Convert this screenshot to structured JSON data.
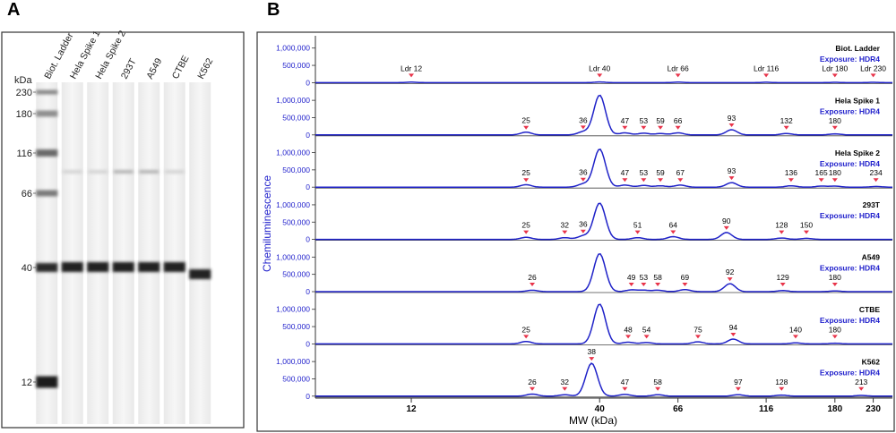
{
  "panels": {
    "a": "A",
    "b": "B"
  },
  "gel": {
    "kda_label": "kDa",
    "lanes": [
      "Biot. Ladder",
      "Hela Spike 1",
      "Hela Spike 2",
      "293T",
      "A549",
      "CTBE",
      "K562"
    ],
    "markers": [
      "230",
      "180",
      "116",
      "66",
      "40",
      "12"
    ]
  },
  "chart_data": {
    "type": "line",
    "xlabel": "MW (kDa)",
    "ylabel": "Chemiluminescence",
    "x_ticks": [
      "12",
      "40",
      "66",
      "116",
      "180",
      "230"
    ],
    "y_ticks": [
      "1,000,000",
      "500,000",
      "0"
    ],
    "ylim": [
      0,
      1200000
    ],
    "exposure_label": "Exposure: HDR4",
    "series": [
      {
        "name": "Biot. Ladder",
        "peak_labels": [
          "Ldr 12",
          "Ldr 40",
          "Ldr 66",
          "Ldr 116",
          "Ldr 180",
          "Ldr 230"
        ],
        "peak_mw": [
          12,
          40,
          66,
          116,
          180,
          230
        ],
        "trace": [
          [
            12,
            15000
          ],
          [
            40,
            20000
          ],
          [
            66,
            15000
          ],
          [
            116,
            12000
          ],
          [
            180,
            10000
          ],
          [
            230,
            10000
          ]
        ]
      },
      {
        "name": "Hela Spike 1",
        "peak_labels": [
          "25",
          "36",
          "47",
          "53",
          "59",
          "66",
          "93",
          "132",
          "180"
        ],
        "peak_mw": [
          25,
          36,
          47,
          53,
          59,
          66,
          93,
          132,
          180
        ],
        "trace": [
          [
            25,
            80000
          ],
          [
            36,
            90000
          ],
          [
            40,
            1150000
          ],
          [
            47,
            60000
          ],
          [
            53,
            50000
          ],
          [
            59,
            40000
          ],
          [
            66,
            60000
          ],
          [
            93,
            150000
          ],
          [
            132,
            40000
          ],
          [
            180,
            30000
          ]
        ]
      },
      {
        "name": "Hela Spike 2",
        "peak_labels": [
          "25",
          "36",
          "47",
          "53",
          "59",
          "67",
          "93",
          "136",
          "165",
          "180",
          "234"
        ],
        "peak_mw": [
          25,
          36,
          47,
          53,
          59,
          67,
          93,
          136,
          165,
          180,
          234
        ],
        "trace": [
          [
            25,
            70000
          ],
          [
            36,
            90000
          ],
          [
            40,
            1100000
          ],
          [
            47,
            60000
          ],
          [
            53,
            50000
          ],
          [
            59,
            40000
          ],
          [
            67,
            60000
          ],
          [
            93,
            130000
          ],
          [
            136,
            40000
          ],
          [
            165,
            30000
          ],
          [
            180,
            30000
          ],
          [
            234,
            20000
          ]
        ]
      },
      {
        "name": "293T",
        "peak_labels": [
          "25",
          "32",
          "36",
          "51",
          "64",
          "90",
          "128",
          "150"
        ],
        "peak_mw": [
          25,
          32,
          36,
          51,
          64,
          90,
          128,
          150
        ],
        "trace": [
          [
            25,
            60000
          ],
          [
            32,
            50000
          ],
          [
            36,
            100000
          ],
          [
            40,
            1050000
          ],
          [
            51,
            50000
          ],
          [
            64,
            80000
          ],
          [
            90,
            200000
          ],
          [
            128,
            40000
          ],
          [
            150,
            30000
          ]
        ]
      },
      {
        "name": "A549",
        "peak_labels": [
          "26",
          "49",
          "53",
          "58",
          "69",
          "92",
          "129",
          "180"
        ],
        "peak_mw": [
          26,
          49,
          53,
          58,
          69,
          92,
          129,
          180
        ],
        "trace": [
          [
            26,
            40000
          ],
          [
            40,
            1100000
          ],
          [
            49,
            50000
          ],
          [
            53,
            40000
          ],
          [
            58,
            40000
          ],
          [
            69,
            60000
          ],
          [
            92,
            230000
          ],
          [
            129,
            30000
          ],
          [
            180,
            20000
          ]
        ]
      },
      {
        "name": "CTBE",
        "peak_labels": [
          "25",
          "48",
          "54",
          "75",
          "94",
          "140",
          "180"
        ],
        "peak_mw": [
          25,
          48,
          54,
          75,
          94,
          140,
          180
        ],
        "trace": [
          [
            25,
            70000
          ],
          [
            40,
            1150000
          ],
          [
            48,
            50000
          ],
          [
            54,
            40000
          ],
          [
            75,
            60000
          ],
          [
            94,
            140000
          ],
          [
            140,
            30000
          ],
          [
            180,
            20000
          ]
        ]
      },
      {
        "name": "K562",
        "peak_labels": [
          "26",
          "32",
          "38",
          "47",
          "58",
          "97",
          "128",
          "213"
        ],
        "peak_mw": [
          26,
          32,
          38,
          47,
          58,
          97,
          128,
          213
        ],
        "trace": [
          [
            26,
            60000
          ],
          [
            32,
            40000
          ],
          [
            38,
            950000
          ],
          [
            47,
            50000
          ],
          [
            58,
            40000
          ],
          [
            97,
            40000
          ],
          [
            128,
            30000
          ],
          [
            213,
            20000
          ]
        ]
      }
    ]
  }
}
